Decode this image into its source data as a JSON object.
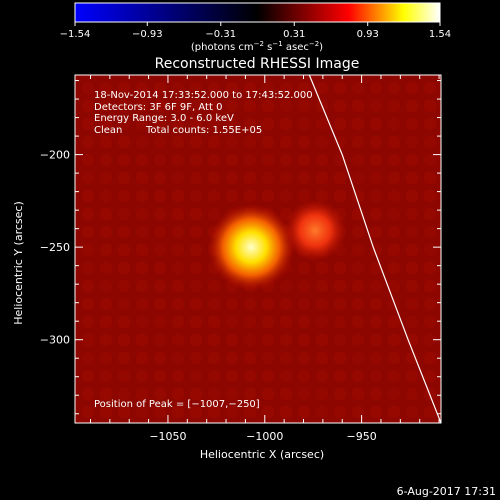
{
  "chart_data": {
    "type": "heatmap",
    "title": "Reconstructed RHESSI Image",
    "xlabel": "Heliocentric X (arcsec)",
    "ylabel": "Heliocentric Y (arcsec)",
    "xlim": [
      -1098,
      -909
    ],
    "ylim": [
      -345,
      -157
    ],
    "x_ticks": [
      -1050,
      -1000,
      -950
    ],
    "y_ticks": [
      -200,
      -250,
      -300
    ],
    "x_tick_labels": [
      "−1050",
      "−1000",
      "−950"
    ],
    "y_tick_labels": [
      "−200",
      "−250",
      "−300"
    ],
    "colorbar": {
      "range": [
        -1.54,
        1.54
      ],
      "ticks": [
        -1.54,
        -0.93,
        -0.31,
        0.31,
        0.93,
        1.54
      ],
      "tick_labels": [
        "−1.54",
        "−0.93",
        "−0.31",
        "0.31",
        "0.93",
        "1.54"
      ],
      "unit_label": {
        "pre": "(photons cm",
        "e1": "−2",
        "mid1": " s",
        "e2": "−1",
        "mid2": " asec",
        "e3": "−2",
        "post": ")"
      },
      "colormap": [
        "#0000ff",
        "#000000",
        "#ff0000",
        "#ffff00",
        "#ffffff"
      ]
    },
    "sources": [
      {
        "x": -1007,
        "y": -250,
        "peak": 1.54,
        "sigma_arcsec": 7
      },
      {
        "x": -974,
        "y": -241,
        "peak": 0.95,
        "sigma_arcsec": 5
      }
    ],
    "background_level": 0.62,
    "limb": [
      [
        -977,
        -157
      ],
      [
        -960,
        -200
      ],
      [
        -944,
        -250
      ],
      [
        -926,
        -300
      ],
      [
        -909,
        -345
      ]
    ],
    "annotations": {
      "time_range": "18-Nov-2014 17:33:52.000 to 17:43:52.000",
      "detectors": "Detectors: 3F 6F 9F, Att 0",
      "energy": "Energy Range: 3.0 - 6.0 keV",
      "clean": "Clean",
      "total_counts": "Total counts: 1.55E+05",
      "peak_position": "Position of Peak = [−1007,−250]"
    },
    "footer_date": "6-Aug-2017 17:31"
  }
}
